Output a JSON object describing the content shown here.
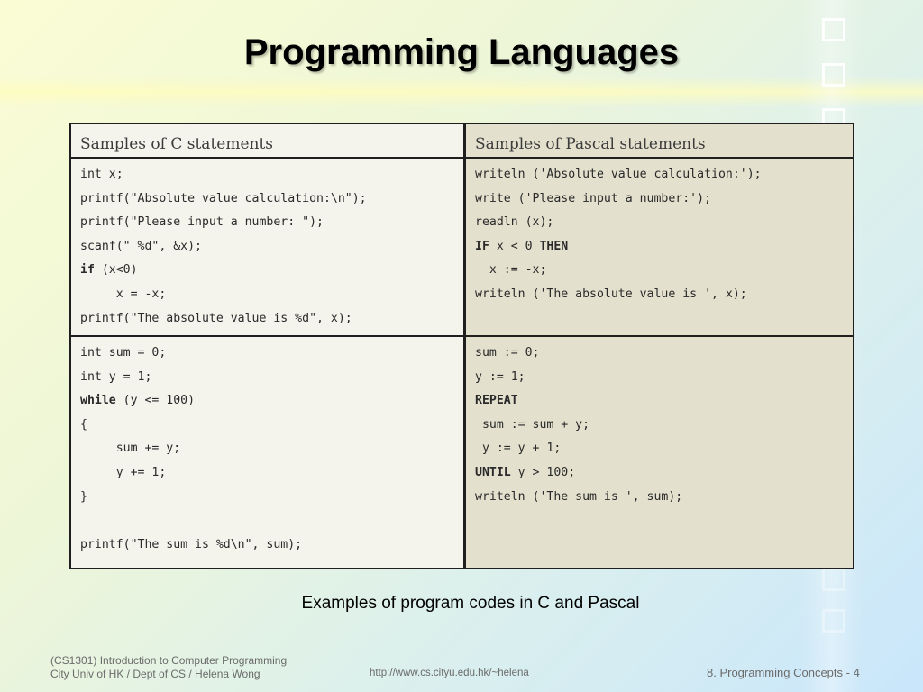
{
  "slide": {
    "title": "Programming Languages",
    "caption": "Examples of program codes in C and Pascal"
  },
  "table": {
    "headers": [
      "Samples of C statements",
      "Samples of Pascal statements"
    ],
    "rows": [
      {
        "c": [
          "int x;",
          "printf(\"Absolute value calculation:\\n\");",
          "printf(\"Please input a number: \");",
          "scanf(\" %d\", &x);",
          "if (x<0)",
          "     x = -x;",
          "printf(\"The absolute value is %d\", x);"
        ],
        "pascal": [
          "writeln ('Absolute value calculation:');",
          "write ('Please input a number:');",
          "readln (x);",
          "IF x < 0 THEN",
          "  x := -x;",
          "writeln ('The absolute value is ', x);"
        ]
      },
      {
        "c": [
          "int sum = 0;",
          "int y = 1;",
          "while (y <= 100)",
          "{",
          "     sum += y;",
          "     y += 1;",
          "}",
          "",
          "printf(\"The sum is %d\\n\", sum);"
        ],
        "pascal": [
          "sum := 0;",
          "y := 1;",
          "REPEAT",
          " sum := sum + y;",
          " y := y + 1;",
          "UNTIL y > 100;",
          "writeln ('The sum is ', sum);"
        ]
      }
    ]
  },
  "footer": {
    "course_line1": "(CS1301) Introduction to Computer Programming",
    "course_line2": "City Univ of HK / Dept of CS / Helena Wong",
    "url": "http://www.cs.cityu.edu.hk/~helena",
    "page": "8. Programming Concepts - 4"
  }
}
